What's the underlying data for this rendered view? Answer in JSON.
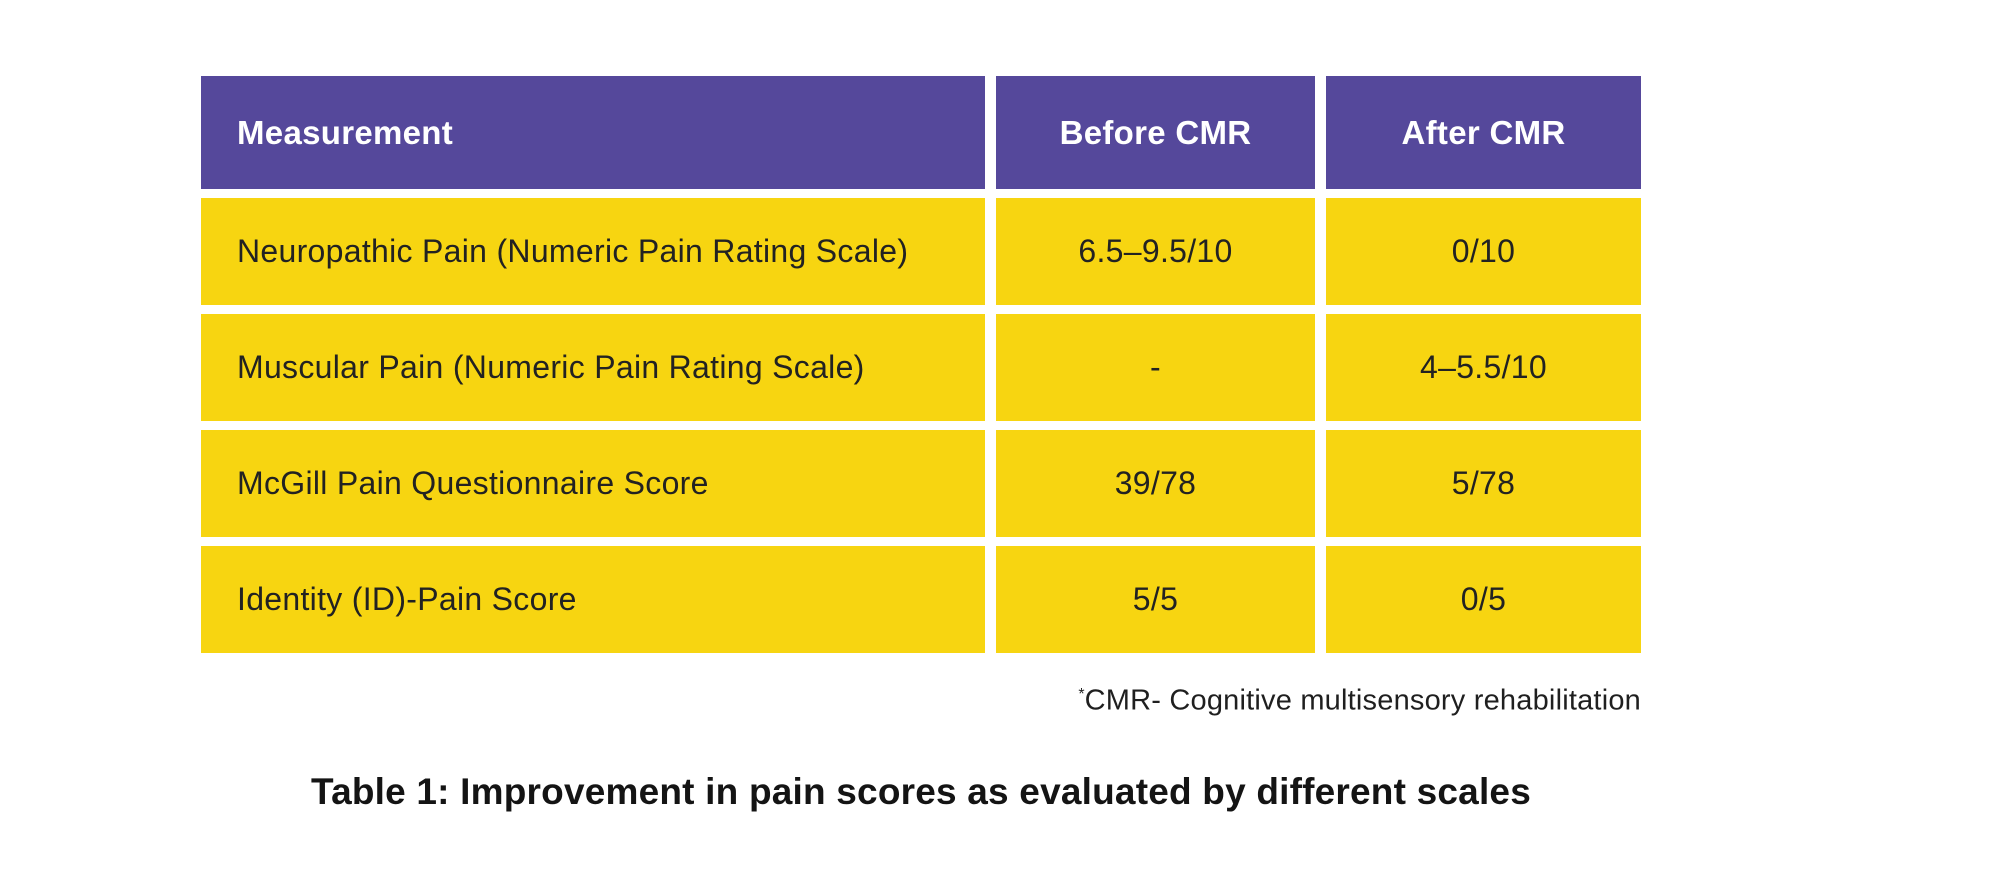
{
  "chart_data": {
    "type": "table",
    "title": "Table 1: Improvement in pain scores as evaluated by different scales",
    "columns": [
      "Measurement",
      "Before CMR",
      "After CMR"
    ],
    "rows": [
      [
        "Neuropathic Pain (Numeric Pain Rating Scale)",
        "6.5–9.5/10",
        "0/10"
      ],
      [
        "Muscular Pain (Numeric Pain Rating Scale)",
        "-",
        "4–5.5/10"
      ],
      [
        "McGill Pain Questionnaire Score",
        "39/78",
        "5/78"
      ],
      [
        "Identity (ID)-Pain Score",
        "5/5",
        "0/5"
      ]
    ],
    "footnote": "*CMR- Cognitive multisensory rehabilitation"
  },
  "footnote": {
    "marker": "*",
    "text": "CMR- Cognitive multisensory rehabilitation"
  },
  "colors": {
    "header_bg": "#55489B",
    "header_text": "#FFFFFF",
    "row_bg": "#F7D511",
    "row_text": "#222222",
    "gap": "#FFFFFF"
  }
}
